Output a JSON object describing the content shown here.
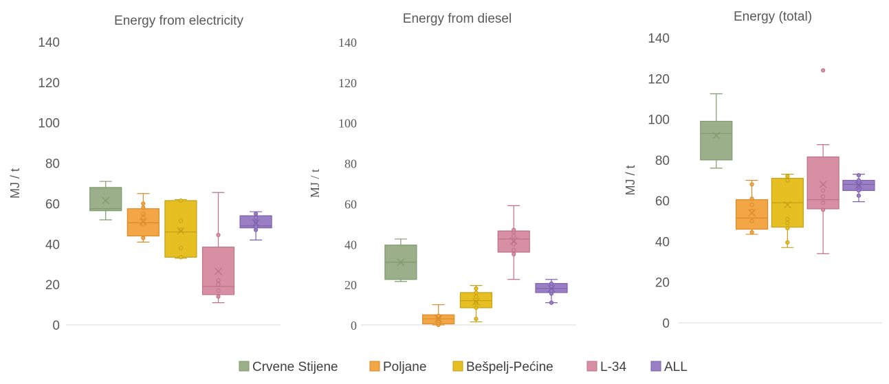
{
  "legend": {
    "items": [
      {
        "label": "Crvene Stijene",
        "color": "#9bb08a",
        "stroke": "#7f9a6e"
      },
      {
        "label": "Poljane",
        "color": "#f3a646",
        "stroke": "#d98a26"
      },
      {
        "label": "Bešpelj-Pećine",
        "color": "#e6bf22",
        "stroke": "#c4a015"
      },
      {
        "label": "L-34",
        "color": "#d68fa3",
        "stroke": "#be7186"
      },
      {
        "label": "ALL",
        "color": "#9a7fc4",
        "stroke": "#7d60ab"
      }
    ]
  },
  "chart_data": [
    {
      "type": "box",
      "title": "Energy  from electricity",
      "ylabel": "MJ / t",
      "ylim": [
        0,
        140
      ],
      "yticks": [
        "0",
        "20",
        "40",
        "60",
        "80",
        "100",
        "120",
        "140"
      ],
      "series": [
        {
          "name": "Crvene Stijene",
          "min": 52,
          "q1": 56.5,
          "median": 57.5,
          "q3": 68,
          "max": 71,
          "mean": 61.5,
          "points": []
        },
        {
          "name": "Poljane",
          "min": 41,
          "q1": 44,
          "median": 50.5,
          "q3": 57.5,
          "max": 65,
          "mean": 51,
          "points": [
            43,
            50,
            53,
            55,
            58,
            60
          ]
        },
        {
          "name": "Bešpelj-Pećine",
          "min": 33,
          "q1": 33.5,
          "median": 46,
          "q3": 61.5,
          "max": 62,
          "mean": 46.5,
          "points": [
            33.5,
            38,
            47,
            51.5,
            61.5
          ]
        },
        {
          "name": "L-34",
          "min": 11,
          "q1": 15,
          "median": 19,
          "q3": 38.5,
          "max": 65.5,
          "mean": 26.5,
          "points": [
            14,
            17,
            20,
            22,
            44.5
          ]
        },
        {
          "name": "ALL",
          "min": 42,
          "q1": 48,
          "median": 49,
          "q3": 54,
          "max": 56,
          "mean": 50.5,
          "points": [
            47,
            48.5,
            51,
            53,
            55
          ]
        }
      ]
    },
    {
      "type": "box",
      "title": "Energy  from diesel",
      "ylabel": "MJ / t",
      "ylim": [
        0,
        140
      ],
      "yticks": [
        "0",
        "20",
        "40",
        "60",
        "80",
        "100",
        "120",
        "140"
      ],
      "series": [
        {
          "name": "Crvene Stijene",
          "min": 21.5,
          "q1": 22.5,
          "median": 31,
          "q3": 39.5,
          "max": 42.5,
          "mean": 31,
          "points": []
        },
        {
          "name": "Poljane",
          "min": 0,
          "q1": 0.5,
          "median": 3,
          "q3": 5,
          "max": 10,
          "mean": 3,
          "points": [
            0,
            1,
            2,
            3,
            4.5
          ]
        },
        {
          "name": "Bešpelj-Pećine",
          "min": 1.5,
          "q1": 8.5,
          "median": 12,
          "q3": 16,
          "max": 19.5,
          "mean": 11.5,
          "points": [
            3,
            8.5,
            11,
            14,
            16,
            18
          ]
        },
        {
          "name": "L-34",
          "min": 22.5,
          "q1": 36,
          "median": 42.5,
          "q3": 46.5,
          "max": 59,
          "mean": 41.5,
          "points": [
            35,
            37,
            40,
            44,
            46,
            47
          ]
        },
        {
          "name": "ALL",
          "min": 11,
          "q1": 16,
          "median": 18,
          "q3": 20.5,
          "max": 22.5,
          "mean": 18,
          "points": [
            11,
            15.5,
            17,
            19,
            20.5
          ]
        }
      ]
    },
    {
      "type": "box",
      "title": "Energy  (total)",
      "ylabel": "MJ / t",
      "ylim": [
        0,
        140
      ],
      "yticks": [
        "0",
        "20",
        "40",
        "60",
        "80",
        "100",
        "120",
        "140"
      ],
      "series": [
        {
          "name": "Crvene Stijene",
          "min": 76,
          "q1": 80,
          "median": 93,
          "q3": 99,
          "max": 112.5,
          "mean": 92,
          "points": []
        },
        {
          "name": "Poljane",
          "min": 43.5,
          "q1": 46,
          "median": 51.5,
          "q3": 60.5,
          "max": 70,
          "mean": 54,
          "points": [
            44.5,
            50,
            55,
            58,
            61,
            68
          ]
        },
        {
          "name": "Bešpelj-Pećine",
          "min": 37,
          "q1": 47,
          "median": 59,
          "q3": 71,
          "max": 73,
          "mean": 58,
          "points": [
            39.5,
            46.5,
            49,
            51,
            70,
            72
          ]
        },
        {
          "name": "L-34",
          "min": 34,
          "q1": 56,
          "median": 60.5,
          "q3": 81.5,
          "max": 87.5,
          "mean": 68,
          "points": [
            55.5,
            59,
            62,
            65,
            124
          ]
        },
        {
          "name": "ALL",
          "min": 59.5,
          "q1": 65,
          "median": 68,
          "q3": 70,
          "max": 73,
          "mean": 67.5,
          "points": [
            62.5,
            65,
            67,
            69,
            70,
            72.5
          ]
        }
      ]
    }
  ]
}
